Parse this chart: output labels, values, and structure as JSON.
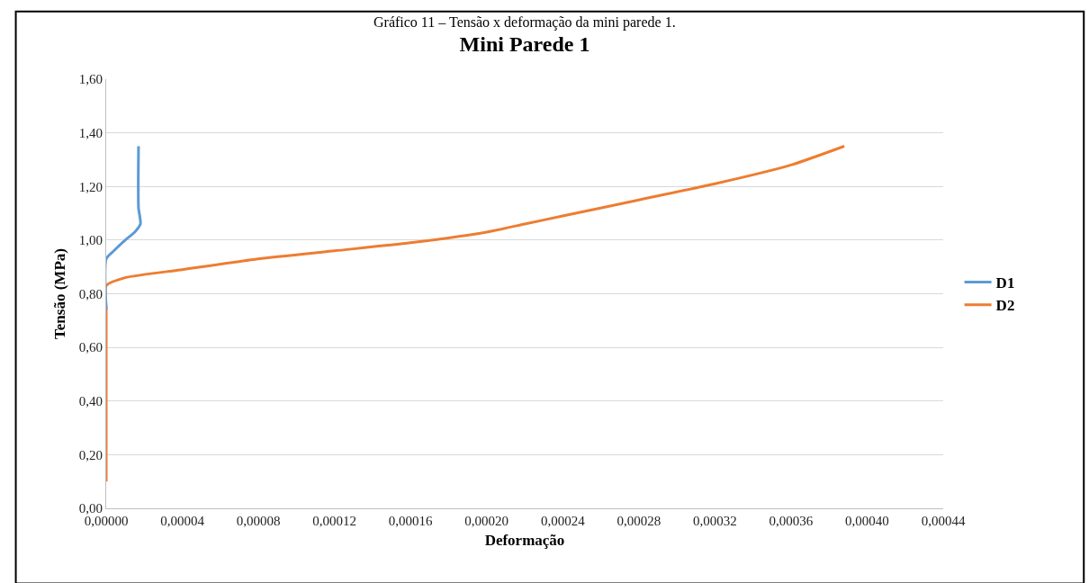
{
  "chart_data": {
    "type": "line",
    "title": "Mini Parede 1",
    "xlabel": "Deformação",
    "ylabel": "Tensão (MPa)",
    "annotations": [
      "Gráfico 11 – Tensão x deformação da mini parede 1."
    ],
    "series": [
      {
        "name": "D1",
        "color": "#5b9bd5",
        "x": [
          0,
          0,
          4e-06,
          1e-05,
          1.5e-05,
          1.8e-05,
          1.7e-05,
          1.7e-05
        ],
        "values": [
          0.74,
          0.93,
          0.96,
          1.0,
          1.03,
          1.06,
          1.12,
          1.35
        ]
      },
      {
        "name": "D2",
        "color": "#ed7d31",
        "x": [
          0,
          0,
          0,
          1e-05,
          4e-05,
          8e-05,
          0.00012,
          0.00016,
          0.0002,
          0.00022,
          0.00024,
          0.00028,
          0.00032,
          0.00036,
          0.000388
        ],
        "values": [
          0.1,
          0.74,
          0.83,
          0.86,
          0.89,
          0.93,
          0.96,
          0.99,
          1.03,
          1.06,
          1.09,
          1.15,
          1.21,
          1.28,
          1.35
        ]
      }
    ],
    "xlim": [
      0,
      0.00044
    ],
    "xticks": [
      {
        "value": 0,
        "label": "0,00000"
      },
      {
        "value": 4e-05,
        "label": "0,00004"
      },
      {
        "value": 8e-05,
        "label": "0,00008"
      },
      {
        "value": 0.00012,
        "label": "0,00012"
      },
      {
        "value": 0.00016,
        "label": "0,00016"
      },
      {
        "value": 0.0002,
        "label": "0,00020"
      },
      {
        "value": 0.00024,
        "label": "0,00024"
      },
      {
        "value": 0.00028,
        "label": "0,00028"
      },
      {
        "value": 0.00032,
        "label": "0,00032"
      },
      {
        "value": 0.00036,
        "label": "0,00036"
      },
      {
        "value": 0.0004,
        "label": "0,00040"
      },
      {
        "value": 0.00044,
        "label": "0,00044"
      }
    ],
    "ylim": [
      0,
      1.6
    ],
    "yticks": [
      {
        "value": 0,
        "label": "0,00"
      },
      {
        "value": 0.2,
        "label": "0,20"
      },
      {
        "value": 0.4,
        "label": "0,40"
      },
      {
        "value": 0.6,
        "label": "0,60"
      },
      {
        "value": 0.8,
        "label": "0,80"
      },
      {
        "value": 1.0,
        "label": "1,00"
      },
      {
        "value": 1.2,
        "label": "1,20"
      },
      {
        "value": 1.4,
        "label": "1,40"
      },
      {
        "value": 1.6,
        "label": "1,60"
      }
    ],
    "grid": "y",
    "legend": "right",
    "marker": "none",
    "line_style": "solid"
  }
}
